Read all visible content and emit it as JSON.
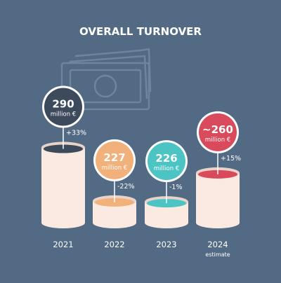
{
  "title": "OVERALL TURNOVER",
  "background_icon": "banknotes-icon",
  "colors": {
    "background": "#536a84",
    "cylinder": "#fbeae2",
    "cylinder_shadow": "#e9d3c8",
    "text_light": "#ffffff",
    "text_dark": "#2b3440"
  },
  "chart_data": {
    "type": "bar",
    "title": "OVERALL TURNOVER",
    "unit": "million €",
    "categories": [
      "2021",
      "2022",
      "2023",
      "2024"
    ],
    "values": [
      290,
      227,
      226,
      260
    ],
    "value_labels": [
      "290",
      "227",
      "226",
      "~260"
    ],
    "changes": [
      "+33%",
      "-22%",
      "-1%",
      "+15%"
    ],
    "notes": [
      "",
      "",
      "",
      "estimate"
    ],
    "colors": [
      "#3c4a5c",
      "#f2b07a",
      "#4cc4c4",
      "#d84a5c"
    ]
  }
}
